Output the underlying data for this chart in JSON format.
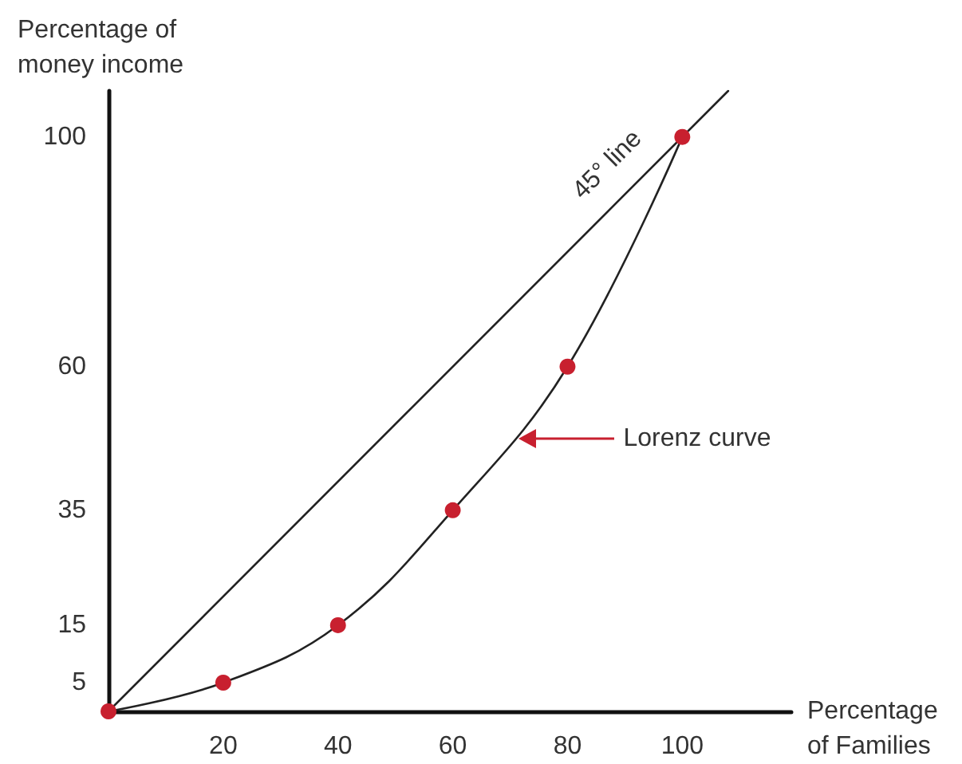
{
  "chart_data": {
    "type": "line",
    "xlabel": "Percentage\nof Families",
    "ylabel": "Percentage of\nmoney income",
    "xlim": [
      0,
      119
    ],
    "xticks": [
      20,
      40,
      60,
      80,
      100
    ],
    "ylim": [
      0,
      108
    ],
    "yticks": [
      5,
      15,
      35,
      60,
      100
    ],
    "grid": false,
    "annotations": [
      {
        "text": "45° line",
        "x": 93,
        "y": 93
      },
      "Lorenz curve"
    ],
    "series": [
      {
        "color": "#222222",
        "marker": "none",
        "x": [
          0,
          108
        ],
        "values": [
          0,
          108
        ]
      },
      {
        "color": "#222222",
        "marker": "none",
        "x": [
          0,
          20,
          40,
          60,
          80,
          100
        ],
        "values": [
          0,
          5,
          15,
          35,
          60,
          100
        ]
      },
      {
        "type": "scatter",
        "color": "#c8202f",
        "marker": "circle",
        "x": [
          0,
          20,
          40,
          60,
          80,
          100
        ],
        "values": [
          0,
          5,
          15,
          35,
          60,
          100
        ]
      }
    ]
  }
}
